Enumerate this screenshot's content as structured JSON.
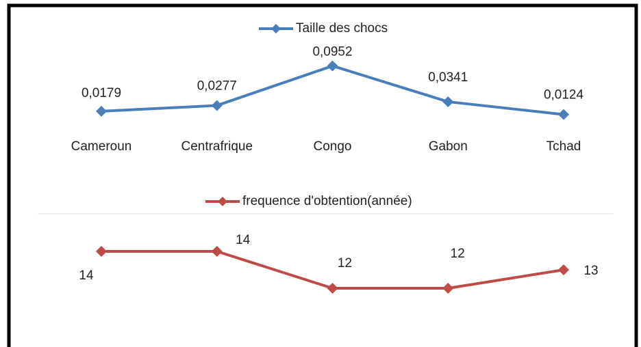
{
  "chart_data": {
    "type": "line",
    "categories": [
      "Cameroun",
      "Centrafrique",
      "Congo",
      "Gabon",
      "Tchad"
    ],
    "series": [
      {
        "name": "Taille des chocs",
        "color": "#4a7ebb",
        "values": [
          0.0179,
          0.0277,
          0.0952,
          0.0341,
          0.0124
        ],
        "value_labels": [
          "0,0179",
          "0,0277",
          "0,0952",
          "0,0341",
          "0,0124"
        ]
      },
      {
        "name": "frequence d'obtention(année)",
        "color": "#be4b48",
        "axis": "y2",
        "values": [
          14,
          14,
          12,
          12,
          13
        ]
      }
    ],
    "ylim": [
      -0.02,
      0.14
    ],
    "y2lim": [
      10,
      16
    ]
  }
}
